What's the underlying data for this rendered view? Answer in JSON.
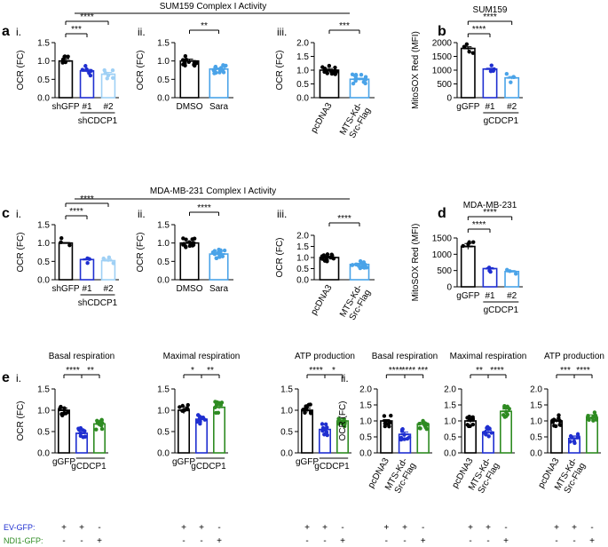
{
  "figure": {
    "section_titles": {
      "top": "SUM159 Complex I Activity",
      "mid": "MDA-MB-231 Complex I Activity"
    },
    "row_labels": {
      "ev_gfp": "EV-GFP:",
      "ndi1_gfp": "NDI1-GFP:"
    },
    "colors": {
      "black": "#000000",
      "dark_blue": "#1f2fd0",
      "light_blue": "#4aa3e8",
      "pale_blue": "#9fd0f5",
      "green": "#2e8b22",
      "axis": "#000000"
    }
  },
  "chart_data": [
    {
      "id": "a1",
      "panel_letter": "a",
      "sub_label": "i.",
      "type": "bar",
      "title": "",
      "ylabel": "OCR (FC)",
      "ylim": [
        0,
        1.5
      ],
      "yticks": [
        "0.0",
        "0.5",
        "1.0",
        "1.5"
      ],
      "categories": [
        "shGFP",
        "#1",
        "#2"
      ],
      "values": [
        1.0,
        0.73,
        0.64
      ],
      "errors": [
        0.06,
        0.04,
        0.05
      ],
      "colors": [
        "black",
        "dark_blue",
        "pale_blue"
      ],
      "n_points": [
        6,
        6,
        6
      ],
      "group_label": "shCDCP1",
      "group_span": [
        1,
        2
      ],
      "sig": [
        {
          "from": 0,
          "to": 2,
          "label": "****"
        },
        {
          "from": 0,
          "to": 1,
          "label": "***"
        }
      ]
    },
    {
      "id": "a2",
      "sub_label": "ii.",
      "type": "bar",
      "ylabel": "OCR (FC)",
      "ylim": [
        0,
        1.5
      ],
      "yticks": [
        "0.0",
        "0.5",
        "1.0",
        "1.5"
      ],
      "categories": [
        "DMSO",
        "Sara"
      ],
      "values": [
        1.0,
        0.78
      ],
      "errors": [
        0.05,
        0.03
      ],
      "colors": [
        "black",
        "light_blue"
      ],
      "n_points": [
        14,
        14
      ],
      "sig": [
        {
          "from": 0,
          "to": 1,
          "label": "**"
        }
      ]
    },
    {
      "id": "a3",
      "sub_label": "iii.",
      "type": "bar",
      "ylabel": "OCR (FC)",
      "ylim": [
        0,
        2.0
      ],
      "yticks": [
        "0.0",
        "0.5",
        "1.0",
        "1.5",
        "2.0"
      ],
      "categories": [
        "pcDNA3",
        "MTS-Kd-\nSrc-Flag"
      ],
      "rotate": true,
      "values": [
        1.0,
        0.67
      ],
      "errors": [
        0.06,
        0.04
      ],
      "colors": [
        "black",
        "light_blue"
      ],
      "n_points": [
        14,
        14
      ],
      "sig": [
        {
          "from": 0,
          "to": 1,
          "label": "***"
        }
      ]
    },
    {
      "id": "b",
      "panel_letter": "b",
      "type": "bar",
      "title": "SUM159",
      "ylabel": "MitoSOX Red (MFI)",
      "ylim": [
        0,
        2000
      ],
      "yticks": [
        "0",
        "500",
        "1000",
        "1500",
        "2000"
      ],
      "categories": [
        "gGFP",
        "#1",
        "#2"
      ],
      "values": [
        1790,
        1040,
        720
      ],
      "errors": [
        60,
        30,
        50
      ],
      "colors": [
        "black",
        "dark_blue",
        "light_blue"
      ],
      "n_points": [
        4,
        4,
        4
      ],
      "group_label": "gCDCP1",
      "group_span": [
        1,
        2
      ],
      "sig": [
        {
          "from": 0,
          "to": 2,
          "label": "****"
        },
        {
          "from": 0,
          "to": 1,
          "label": "****"
        }
      ]
    },
    {
      "id": "c1",
      "panel_letter": "c",
      "sub_label": "i.",
      "type": "bar",
      "ylabel": "OCR (FC)",
      "ylim": [
        0,
        1.5
      ],
      "yticks": [
        "0.0",
        "0.5",
        "1.0",
        "1.5"
      ],
      "categories": [
        "shGFP",
        "#1",
        "#2"
      ],
      "values": [
        1.0,
        0.55,
        0.52
      ],
      "errors": [
        0.01,
        0.02,
        0.04
      ],
      "colors": [
        "black",
        "dark_blue",
        "pale_blue"
      ],
      "n_points": [
        3,
        3,
        3
      ],
      "group_label": "shCDCP1",
      "group_span": [
        1,
        2
      ],
      "sig": [
        {
          "from": 0,
          "to": 2,
          "label": "****"
        },
        {
          "from": 0,
          "to": 1,
          "label": "****"
        }
      ]
    },
    {
      "id": "c2",
      "sub_label": "ii.",
      "type": "bar",
      "ylabel": "OCR (FC)",
      "ylim": [
        0,
        1.5
      ],
      "yticks": [
        "0.0",
        "0.5",
        "1.0",
        "1.5"
      ],
      "categories": [
        "DMSO",
        "Sara"
      ],
      "values": [
        1.0,
        0.7
      ],
      "errors": [
        0.03,
        0.04
      ],
      "colors": [
        "black",
        "light_blue"
      ],
      "n_points": [
        14,
        14
      ],
      "sig": [
        {
          "from": 0,
          "to": 1,
          "label": "****"
        }
      ]
    },
    {
      "id": "c3",
      "sub_label": "iii.",
      "type": "bar",
      "ylabel": "OCR (FC)",
      "ylim": [
        0,
        2.0
      ],
      "yticks": [
        "0.0",
        "0.5",
        "1.0",
        "1.5",
        "2.0"
      ],
      "categories": [
        "pcDNA3",
        "MTS-Kd-\nSrc-Flag"
      ],
      "rotate": true,
      "values": [
        1.0,
        0.69
      ],
      "errors": [
        0.06,
        0.05
      ],
      "colors": [
        "black",
        "light_blue"
      ],
      "n_points": [
        14,
        14
      ],
      "sig": [
        {
          "from": 0,
          "to": 1,
          "label": "****"
        }
      ]
    },
    {
      "id": "d",
      "panel_letter": "d",
      "type": "bar",
      "title": "MDA-MB-231",
      "ylabel": "MitoSOX Red (MFI)",
      "ylim": [
        0,
        1500
      ],
      "yticks": [
        "0",
        "500",
        "1000",
        "1500"
      ],
      "categories": [
        "gGFP",
        "#1",
        "#2"
      ],
      "values": [
        1240,
        560,
        470
      ],
      "errors": [
        90,
        30,
        30
      ],
      "colors": [
        "black",
        "dark_blue",
        "light_blue"
      ],
      "n_points": [
        4,
        3,
        3
      ],
      "group_label": "gCDCP1",
      "group_span": [
        1,
        2
      ],
      "sig": [
        {
          "from": 0,
          "to": 2,
          "label": "****"
        },
        {
          "from": 0,
          "to": 1,
          "label": "****"
        }
      ]
    },
    {
      "id": "e1",
      "panel_letter": "e",
      "sub_label": "i.",
      "type": "bar",
      "title": "Basal respiration",
      "ylabel": "OCR (FC)",
      "ylim": [
        0,
        1.5
      ],
      "yticks": [
        "0.0",
        "0.5",
        "1.0",
        "1.5"
      ],
      "categories": [
        "gGFP",
        "",
        ""
      ],
      "values": [
        1.0,
        0.46,
        0.68
      ],
      "errors": [
        0.05,
        0.06,
        0.06
      ],
      "colors": [
        "black",
        "dark_blue",
        "green"
      ],
      "n_points": [
        10,
        10,
        10
      ],
      "group_label": "gCDCP1",
      "group_span": [
        1,
        2
      ],
      "ev": [
        "+",
        "+",
        "-"
      ],
      "ndi": [
        "-",
        "-",
        "+"
      ],
      "sig": [
        {
          "from": 0,
          "to": 1,
          "label": "****"
        },
        {
          "from": 1,
          "to": 2,
          "label": "**"
        }
      ]
    },
    {
      "id": "e2",
      "type": "bar",
      "title": "Maximal respiration",
      "ylabel": "",
      "ylim": [
        0,
        1.5
      ],
      "yticks": [
        "0.0",
        "0.5",
        "1.0",
        "1.5"
      ],
      "categories": [
        "gGFP",
        "",
        ""
      ],
      "values": [
        1.0,
        0.79,
        1.07
      ],
      "errors": [
        0.08,
        0.04,
        0.04
      ],
      "colors": [
        "black",
        "dark_blue",
        "green"
      ],
      "n_points": [
        10,
        10,
        10
      ],
      "group_label": "gCDCP1",
      "group_span": [
        1,
        2
      ],
      "ev": [
        "+",
        "+",
        "-"
      ],
      "ndi": [
        "-",
        "-",
        "+"
      ],
      "sig": [
        {
          "from": 0,
          "to": 1,
          "label": "*"
        },
        {
          "from": 1,
          "to": 2,
          "label": "**"
        }
      ]
    },
    {
      "id": "e3",
      "type": "bar",
      "title": "ATP production",
      "ylabel": "",
      "ylim": [
        0,
        1.5
      ],
      "yticks": [
        "0.0",
        "0.5",
        "1.0",
        "1.5"
      ],
      "categories": [
        "gGFP",
        "",
        ""
      ],
      "values": [
        1.0,
        0.55,
        0.75
      ],
      "errors": [
        0.05,
        0.05,
        0.05
      ],
      "colors": [
        "black",
        "dark_blue",
        "green"
      ],
      "n_points": [
        10,
        10,
        10
      ],
      "group_label": "gCDCP1",
      "group_span": [
        1,
        2
      ],
      "ev": [
        "+",
        "+",
        "-"
      ],
      "ndi": [
        "-",
        "-",
        "+"
      ],
      "sig": [
        {
          "from": 0,
          "to": 1,
          "label": "****"
        },
        {
          "from": 1,
          "to": 2,
          "label": "*"
        }
      ]
    },
    {
      "id": "e4",
      "sub_label": "ii.",
      "type": "bar",
      "title": "Basal respiration",
      "ylabel": "OCR (FC)",
      "ylim": [
        0,
        2.0
      ],
      "yticks": [
        "0.0",
        "0.5",
        "1.0",
        "1.5",
        "2.0"
      ],
      "categories": [
        "pcDNA3",
        "MTS-Kd-\nSrc-Flag",
        ""
      ],
      "rotate": true,
      "values": [
        1.0,
        0.58,
        0.9
      ],
      "errors": [
        0.04,
        0.07,
        0.06
      ],
      "colors": [
        "black",
        "dark_blue",
        "green"
      ],
      "n_points": [
        10,
        10,
        10
      ],
      "ev": [
        "+",
        "+",
        "-"
      ],
      "ndi": [
        "-",
        "-",
        "+"
      ],
      "sig": [
        {
          "from": 0,
          "to": 1,
          "label": "****"
        },
        {
          "from": 1,
          "to": 2,
          "label": "****"
        },
        {
          "from": 1,
          "to": 2,
          "label": "***",
          "shift": true
        }
      ]
    },
    {
      "id": "e5",
      "type": "bar",
      "title": "Maximal respiration",
      "ylabel": "",
      "ylim": [
        0,
        2.0
      ],
      "yticks": [
        "0.0",
        "0.5",
        "1.0",
        "1.5",
        "2.0"
      ],
      "categories": [
        "pcDNA3",
        "MTS-Kd-\nSrc-Flag",
        ""
      ],
      "rotate": true,
      "values": [
        1.0,
        0.65,
        1.3
      ],
      "errors": [
        0.07,
        0.06,
        0.07
      ],
      "colors": [
        "black",
        "dark_blue",
        "green"
      ],
      "n_points": [
        10,
        10,
        10
      ],
      "ev": [
        "+",
        "+",
        "-"
      ],
      "ndi": [
        "-",
        "-",
        "+"
      ],
      "sig": [
        {
          "from": 0,
          "to": 1,
          "label": "**"
        },
        {
          "from": 1,
          "to": 2,
          "label": "****"
        }
      ]
    },
    {
      "id": "e6",
      "type": "bar",
      "title": "ATP production",
      "ylabel": "",
      "ylim": [
        0,
        2.0
      ],
      "yticks": [
        "0.0",
        "0.5",
        "1.0",
        "1.5",
        "2.0"
      ],
      "categories": [
        "pcDNA3",
        "MTS-Kd-\nSrc-Flag",
        ""
      ],
      "rotate": true,
      "values": [
        1.0,
        0.45,
        1.1
      ],
      "errors": [
        0.05,
        0.08,
        0.09
      ],
      "colors": [
        "black",
        "dark_blue",
        "green"
      ],
      "n_points": [
        10,
        10,
        10
      ],
      "ev": [
        "+",
        "+",
        "-"
      ],
      "ndi": [
        "-",
        "-",
        "+"
      ],
      "sig": [
        {
          "from": 0,
          "to": 1,
          "label": "***"
        },
        {
          "from": 1,
          "to": 2,
          "label": "****"
        }
      ]
    }
  ]
}
